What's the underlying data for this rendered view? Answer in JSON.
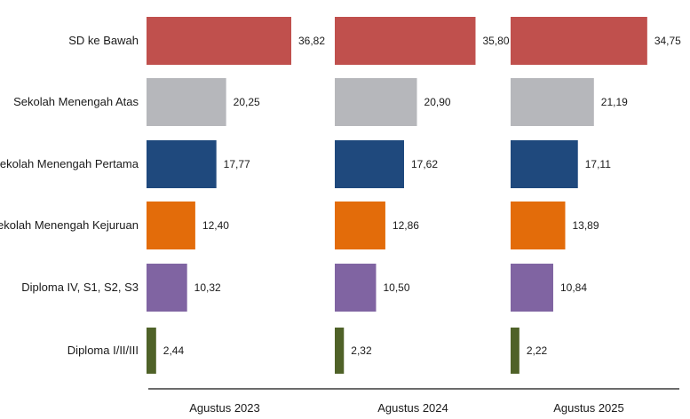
{
  "chart_data": {
    "type": "bar",
    "orientation": "horizontal",
    "layout": "small-multiples",
    "categories": [
      "SD ke Bawah",
      "Sekolah Menengah Atas",
      "Sekolah Menengah Pertama",
      "Sekolah Menengah Kejuruan",
      "Diploma IV, S1, S2, S3",
      "Diploma I/II/III"
    ],
    "category_colors": [
      "#c0504d",
      "#b6b7bb",
      "#1f497d",
      "#e36c0a",
      "#8064a2",
      "#4f6228"
    ],
    "panels": [
      {
        "label": "Agustus 2023",
        "values": [
          36.82,
          20.25,
          17.77,
          12.4,
          10.32,
          2.44
        ],
        "value_labels": [
          "36,82",
          "20,25",
          "17,77",
          "12,40",
          "10,32",
          "2,44"
        ]
      },
      {
        "label": "Agustus 2024",
        "values": [
          35.8,
          20.9,
          17.62,
          12.86,
          10.5,
          2.32
        ],
        "value_labels": [
          "35,80",
          "20,90",
          "17,62",
          "12,86",
          "10,50",
          "2,32"
        ]
      },
      {
        "label": "Agustus 2025",
        "values": [
          34.75,
          21.19,
          17.11,
          13.89,
          10.84,
          2.22
        ],
        "value_labels": [
          "34,75",
          "21,19",
          "17,11",
          "13,89",
          "10,84",
          "2,22"
        ]
      }
    ],
    "title": "",
    "xlabel": "",
    "ylabel": "",
    "xlim": [
      0,
      40
    ],
    "grid": false,
    "legend": "none"
  }
}
